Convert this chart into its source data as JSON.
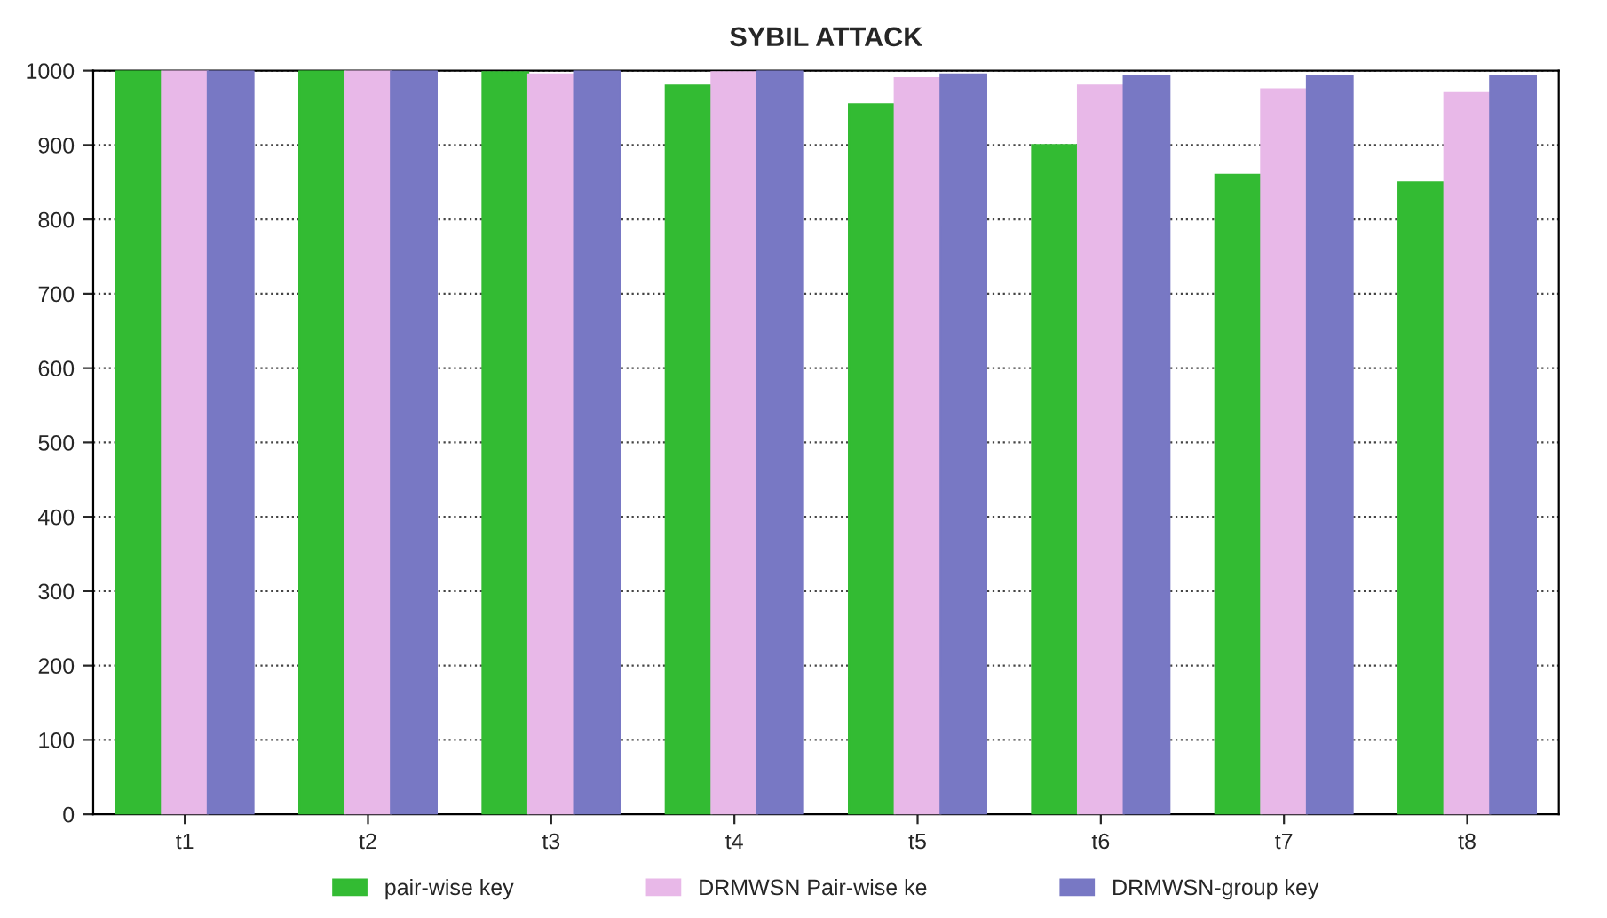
{
  "chart_data": {
    "type": "bar",
    "title": "SYBIL ATTACK",
    "categories": [
      "t1",
      "t2",
      "t3",
      "t4",
      "t5",
      "t6",
      "t7",
      "t8"
    ],
    "series": [
      {
        "name": "pair-wise key",
        "color": "#33bb33",
        "values": [
          1000,
          1000,
          998,
          980,
          955,
          900,
          860,
          850
        ]
      },
      {
        "name": "DRMWSN Pair-wise ke",
        "color": "#e8b8e8",
        "values": [
          1000,
          1000,
          995,
          998,
          990,
          980,
          975,
          970
        ]
      },
      {
        "name": "DRMWSN-group key",
        "color": "#7878c4",
        "values": [
          1000,
          1000,
          1000,
          1000,
          995,
          993,
          993,
          993
        ]
      }
    ],
    "ylim": [
      0,
      1000
    ],
    "yticks": [
      0,
      100,
      200,
      300,
      400,
      500,
      600,
      700,
      800,
      900,
      1000
    ],
    "grid": "y",
    "legend": "bottom"
  }
}
